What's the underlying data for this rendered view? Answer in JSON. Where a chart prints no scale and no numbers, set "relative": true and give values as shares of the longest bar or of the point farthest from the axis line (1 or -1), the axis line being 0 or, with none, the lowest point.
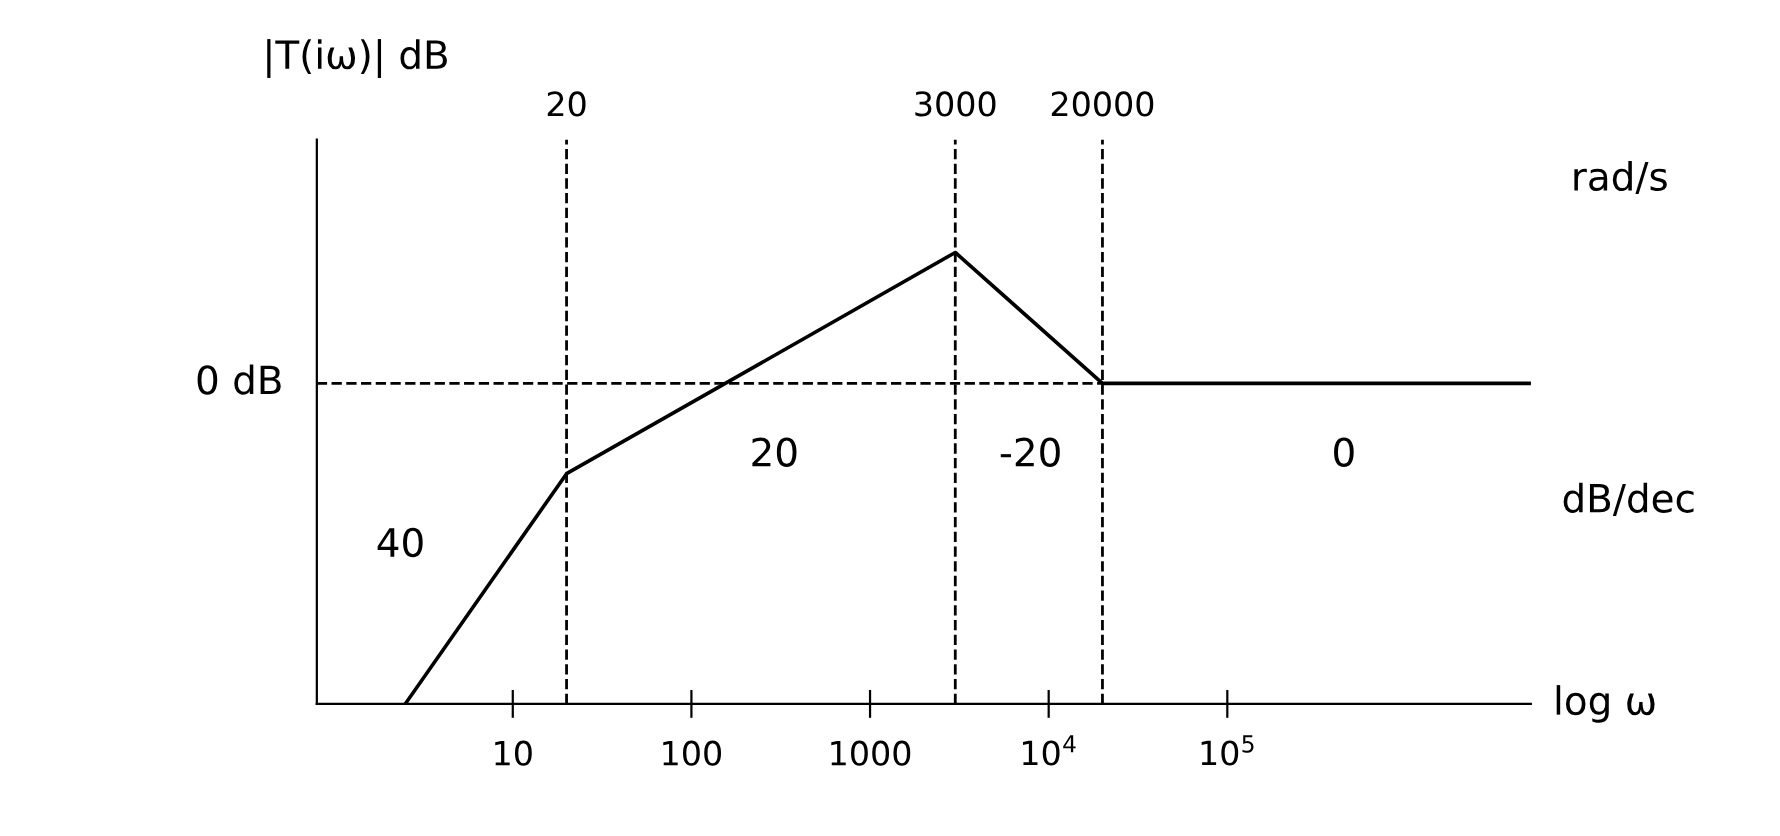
{
  "chart_data": {
    "type": "line",
    "relative": true,
    "ylabel": "|T(iω)| dB",
    "xlabel": "log ω",
    "log": "x",
    "x": [
      2.5,
      20,
      3000,
      20000,
      5000000
    ],
    "series": [
      {
        "color": "#000000",
        "values": [
          0,
          0.51,
          1,
          0.71,
          0.71
        ]
      }
    ],
    "xlim": [
      0.8,
      5000000
    ],
    "xticks": [
      10,
      100,
      1000,
      {
        "value": 10000,
        "label": "10$^{4}$"
      },
      {
        "value": 100000,
        "label": "10$^{5}$"
      }
    ],
    "ref_lines": [
      {
        "axis": "y",
        "value": 0.71,
        "label": "0 dB",
        "line_style": "dashed",
        "color": "#000000"
      },
      {
        "axis": "x",
        "value": 20,
        "label": "20",
        "line_style": "dashed",
        "color": "#000000"
      },
      {
        "axis": "x",
        "value": 3000,
        "label": "3000",
        "line_style": "dashed",
        "color": "#000000"
      },
      {
        "axis": "x",
        "value": 20000,
        "label": "20000",
        "line_style": "dashed",
        "color": "#000000"
      }
    ],
    "annotations": [
      "40",
      "20",
      "-20",
      "0",
      "rad/s",
      "dB/dec"
    ],
    "grid": false,
    "legend": false,
    "marker": "none",
    "line_style": "solid"
  }
}
